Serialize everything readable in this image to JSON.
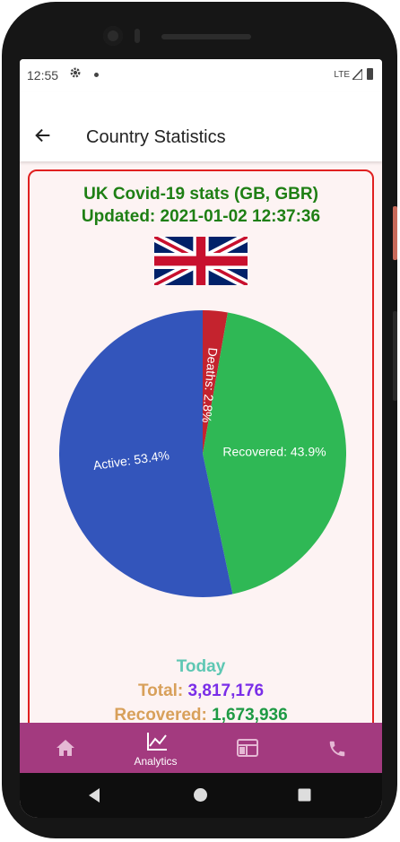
{
  "status_bar": {
    "time": "12:55",
    "network": "LTE",
    "icons": [
      "gear-icon",
      "notification-dot-icon",
      "signal-icon",
      "battery-icon"
    ]
  },
  "app_bar": {
    "title": "Country Statistics",
    "back_icon": "arrow-left-icon"
  },
  "card": {
    "title_line1": "UK Covid-19 stats (GB, GBR)",
    "title_line2": "Updated: 2021-01-02 12:37:36",
    "flag": "united-kingdom-flag",
    "border_color": "#e02020"
  },
  "chart_data": {
    "type": "pie",
    "slices": [
      {
        "label": "Deaths: 2.8%",
        "name": "Deaths",
        "value": 2.8,
        "color": "#c4232e"
      },
      {
        "label": "Recovered: 43.9%",
        "name": "Recovered",
        "value": 43.9,
        "color": "#2fb855"
      },
      {
        "label": "Active: 53.4%",
        "name": "Active",
        "value": 53.4,
        "color": "#3355bb"
      }
    ]
  },
  "stats": {
    "today_label": "Today",
    "total_label": "Total:",
    "total_value": "3,817,176",
    "recovered_label": "Recovered:",
    "recovered_value": "1,673,936"
  },
  "bottom_nav": {
    "items": [
      {
        "icon": "home-icon",
        "label": ""
      },
      {
        "icon": "analytics-chart-icon",
        "label": "Analytics"
      },
      {
        "icon": "newspaper-icon",
        "label": ""
      },
      {
        "icon": "phone-icon",
        "label": ""
      }
    ],
    "background": "#a33a7f"
  },
  "system_nav": {
    "icons": [
      "back-triangle-icon",
      "home-circle-icon",
      "recents-square-icon"
    ]
  }
}
